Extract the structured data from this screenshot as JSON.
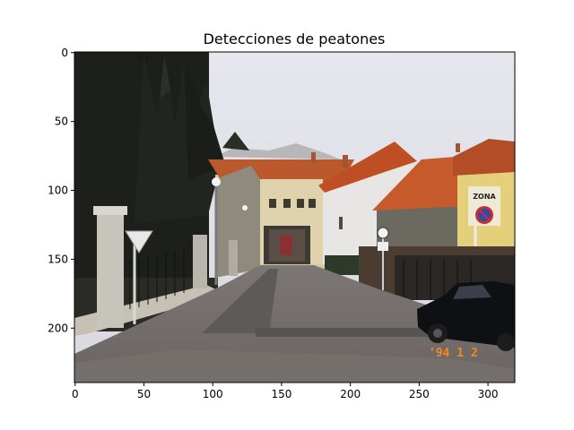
{
  "figure": {
    "title": "Detecciones de peatones",
    "x_ticks": [
      "0",
      "50",
      "100",
      "150",
      "200",
      "250",
      "300"
    ],
    "y_ticks": [
      "0",
      "50",
      "100",
      "150",
      "200"
    ]
  },
  "image": {
    "description_icon": "street-photo",
    "sign_text": "ZONA",
    "date_stamp": "'94  1  2"
  }
}
